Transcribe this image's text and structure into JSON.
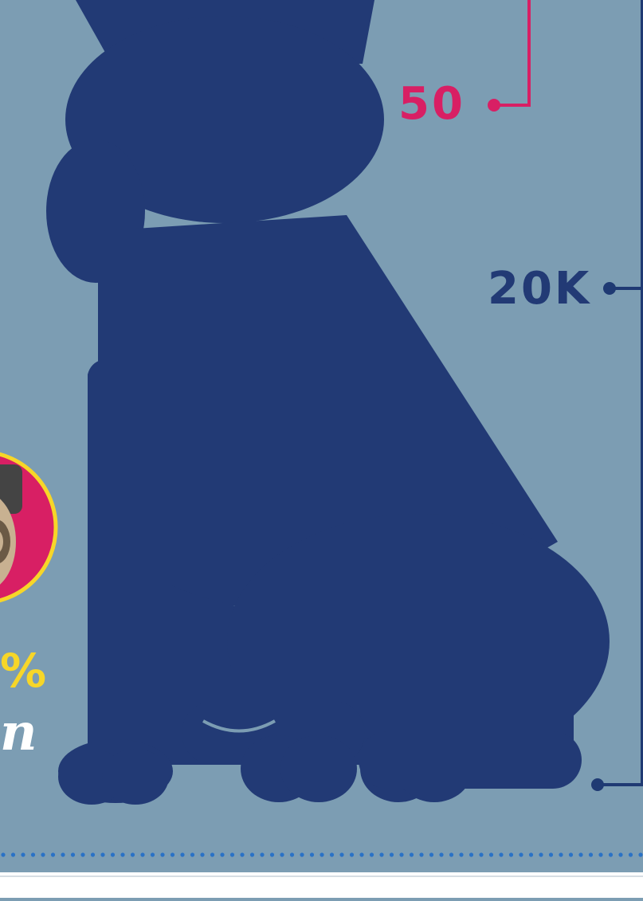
{
  "colors": {
    "background": "#7c9db3",
    "dog_silhouette": "#223a75",
    "accent_pink": "#d81f64",
    "accent_yellow": "#f7d628",
    "line_navy": "#1f3a73",
    "dots_blue": "#2a72c6",
    "footer_white": "#ffffff"
  },
  "height_scale": {
    "marker_small": "50",
    "marker_large": "20K"
  },
  "side_stat": {
    "percent_fragment": "%",
    "text_fragment": "n",
    "icon": "pug-face-icon"
  }
}
